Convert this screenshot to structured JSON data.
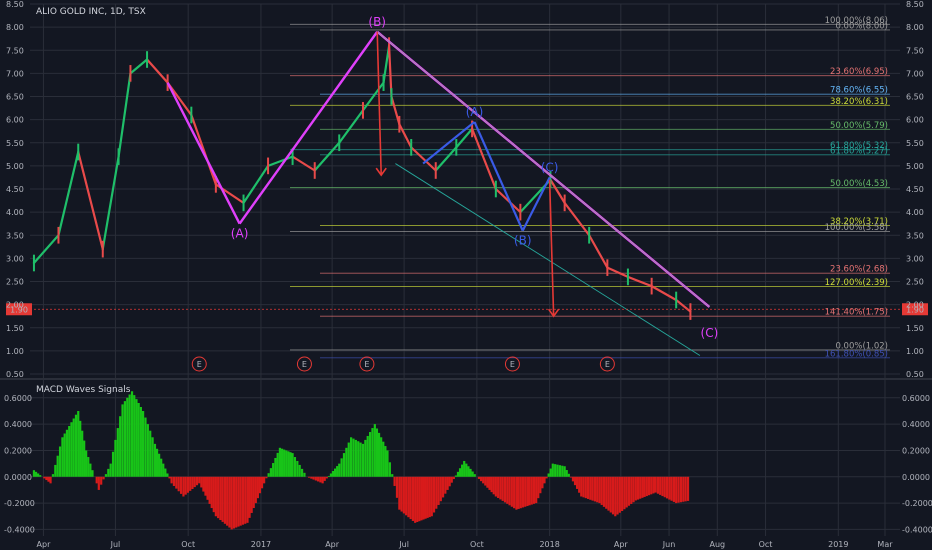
{
  "header": {
    "symbol": "ALIO GOLD INC, 1D, TSX"
  },
  "colors": {
    "background": "#131722",
    "grid": "#2a2e39",
    "candle_up": "#1fbf6a",
    "candle_down": "#e94a4a",
    "wave_line": "#e040fb",
    "sub_wave": "#3a5be6",
    "macd_up": "#18c418",
    "macd_down": "#d81b1b",
    "price_badge": "#e53935",
    "event_marker": "#e53935"
  },
  "chart_data": [
    {
      "type": "line",
      "title": "ALIO GOLD INC, 1D, TSX",
      "x_tick_labels": [
        "Apr",
        "Jul",
        "Oct",
        "2017",
        "Apr",
        "Jul",
        "Oct",
        "2018",
        "Apr",
        "Jun",
        "Aug",
        "Oct",
        "2019",
        "Mar"
      ],
      "x_range": [
        "2016-03-15",
        "2019-03-20"
      ],
      "y_tick_labels": [
        "0.50",
        "1.00",
        "1.50",
        "2.00",
        "2.50",
        "3.00",
        "3.50",
        "4.00",
        "4.50",
        "5.00",
        "5.50",
        "6.00",
        "6.50",
        "7.00",
        "7.50",
        "8.00",
        "8.50"
      ],
      "ylim": [
        0.5,
        8.5
      ],
      "last_price": "1.90",
      "series": [
        {
          "x": [
            "2016-03-20",
            "2016-04-20",
            "2016-05-15",
            "2016-06-15",
            "2016-07-05",
            "2016-07-20",
            "2016-08-10",
            "2016-09-05",
            "2016-10-05",
            "2016-11-05",
            "2016-12-10",
            "2017-01-10",
            "2017-02-10",
            "2017-03-10",
            "2017-04-10",
            "2017-05-10",
            "2017-06-05",
            "2017-06-12",
            "2017-06-15",
            "2017-06-25",
            "2017-07-10",
            "2017-08-10",
            "2017-09-05",
            "2017-09-25",
            "2017-10-25",
            "2017-11-25",
            "2018-01-02",
            "2018-01-20",
            "2018-02-20",
            "2018-03-15",
            "2018-04-10",
            "2018-05-10",
            "2018-06-10",
            "2018-06-28"
          ],
          "y": [
            2.9,
            3.5,
            5.3,
            3.2,
            5.2,
            7.0,
            7.3,
            6.8,
            6.1,
            4.6,
            4.2,
            5.0,
            5.2,
            4.9,
            5.5,
            6.2,
            6.8,
            7.6,
            6.5,
            5.9,
            5.4,
            4.9,
            5.4,
            5.8,
            4.5,
            4.0,
            4.7,
            4.2,
            3.5,
            2.8,
            2.6,
            2.4,
            2.1,
            1.85
          ]
        }
      ],
      "elliott_waves": [
        {
          "label": "(B)",
          "x": "2017-05-28",
          "y": 7.9
        },
        {
          "label": "(A)",
          "x": "2016-12-05",
          "y": 3.75
        },
        {
          "label": "(A)",
          "x": "2017-09-28",
          "y": 5.95
        },
        {
          "label": "(B)",
          "x": "2017-11-28",
          "y": 3.6
        },
        {
          "label": "(C)",
          "x": "2018-01-01",
          "y": 4.75
        },
        {
          "label": "(C)",
          "x": "2018-07-22",
          "y": 1.6
        }
      ],
      "fib_labels": [
        {
          "text": "100.00%(8.06)",
          "price": 8.06,
          "color": "#9e9e9e"
        },
        {
          "text": "0.00%(8.00)",
          "price": 7.94,
          "color": "#9e9e9e"
        },
        {
          "text": "23.60%(6.95)",
          "price": 6.95,
          "color": "#e57373"
        },
        {
          "text": "78.60%(6.55)",
          "price": 6.55,
          "color": "#64b5f6"
        },
        {
          "text": "38.20%(6.31)",
          "price": 6.31,
          "color": "#cddc39"
        },
        {
          "text": "50.00%(5.79)",
          "price": 5.79,
          "color": "#66bb6a"
        },
        {
          "text": "61.80%(5.32)",
          "price": 5.35,
          "color": "#26a69a"
        },
        {
          "text": "61.80%(5.27)",
          "price": 5.24,
          "color": "#26a69a"
        },
        {
          "text": "50.00%(4.53)",
          "price": 4.53,
          "color": "#66bb6a"
        },
        {
          "text": "38.20%(3.71)",
          "price": 3.71,
          "color": "#cddc39"
        },
        {
          "text": "100.00%(3.58)",
          "price": 3.58,
          "color": "#9e9e9e"
        },
        {
          "text": "23.60%(2.68)",
          "price": 2.68,
          "color": "#e57373"
        },
        {
          "text": "127.00%(2.39)",
          "price": 2.39,
          "color": "#cddc39"
        },
        {
          "text": "141.40%(1.75)",
          "price": 1.75,
          "color": "#e57373"
        },
        {
          "text": "0.00%(1.02)",
          "price": 1.02,
          "color": "#9e9e9e"
        },
        {
          "text": "161.80%(0.85)",
          "price": 0.85,
          "color": "#3f51b5"
        }
      ],
      "event_markers": [
        {
          "label": "E",
          "x": "2016-10-15"
        },
        {
          "label": "E",
          "x": "2017-02-25"
        },
        {
          "label": "E",
          "x": "2017-05-15"
        },
        {
          "label": "E",
          "x": "2017-11-15"
        },
        {
          "label": "E",
          "x": "2018-03-15"
        }
      ]
    },
    {
      "type": "bar",
      "title": "MACD Waves Signals",
      "y_tick_labels": [
        "0.6000",
        "0.4000",
        "0.2000",
        "0.0000",
        "-0.2000",
        "-0.4000"
      ],
      "ylim": [
        -0.45,
        0.72
      ],
      "series": [
        {
          "x": [
            "2016-03-20",
            "2016-04-10",
            "2016-04-25",
            "2016-05-15",
            "2016-05-25",
            "2016-06-10",
            "2016-06-25",
            "2016-07-10",
            "2016-07-22",
            "2016-08-05",
            "2016-08-20",
            "2016-09-10",
            "2016-09-25",
            "2016-10-15",
            "2016-11-05",
            "2016-11-25",
            "2016-12-15",
            "2017-01-05",
            "2017-01-25",
            "2017-02-10",
            "2017-02-28",
            "2017-03-20",
            "2017-04-10",
            "2017-04-25",
            "2017-05-10",
            "2017-05-25",
            "2017-06-10",
            "2017-06-25",
            "2017-07-15",
            "2017-08-05",
            "2017-08-25",
            "2017-09-15",
            "2017-10-01",
            "2017-10-25",
            "2017-11-20",
            "2017-12-15",
            "2018-01-05",
            "2018-01-20",
            "2018-02-10",
            "2018-03-05",
            "2018-03-25",
            "2018-04-20",
            "2018-05-15",
            "2018-06-10",
            "2018-06-28"
          ],
          "y": [
            0.05,
            -0.05,
            0.3,
            0.5,
            0.2,
            -0.1,
            0.1,
            0.55,
            0.65,
            0.5,
            0.25,
            -0.05,
            -0.15,
            -0.05,
            -0.3,
            -0.4,
            -0.35,
            -0.05,
            0.22,
            0.18,
            0.0,
            -0.05,
            0.1,
            0.3,
            0.25,
            0.4,
            0.2,
            -0.25,
            -0.35,
            -0.3,
            -0.1,
            0.12,
            0.0,
            -0.15,
            -0.25,
            -0.2,
            0.1,
            0.08,
            -0.15,
            -0.2,
            -0.3,
            -0.18,
            -0.12,
            -0.2,
            -0.18
          ]
        }
      ]
    }
  ]
}
